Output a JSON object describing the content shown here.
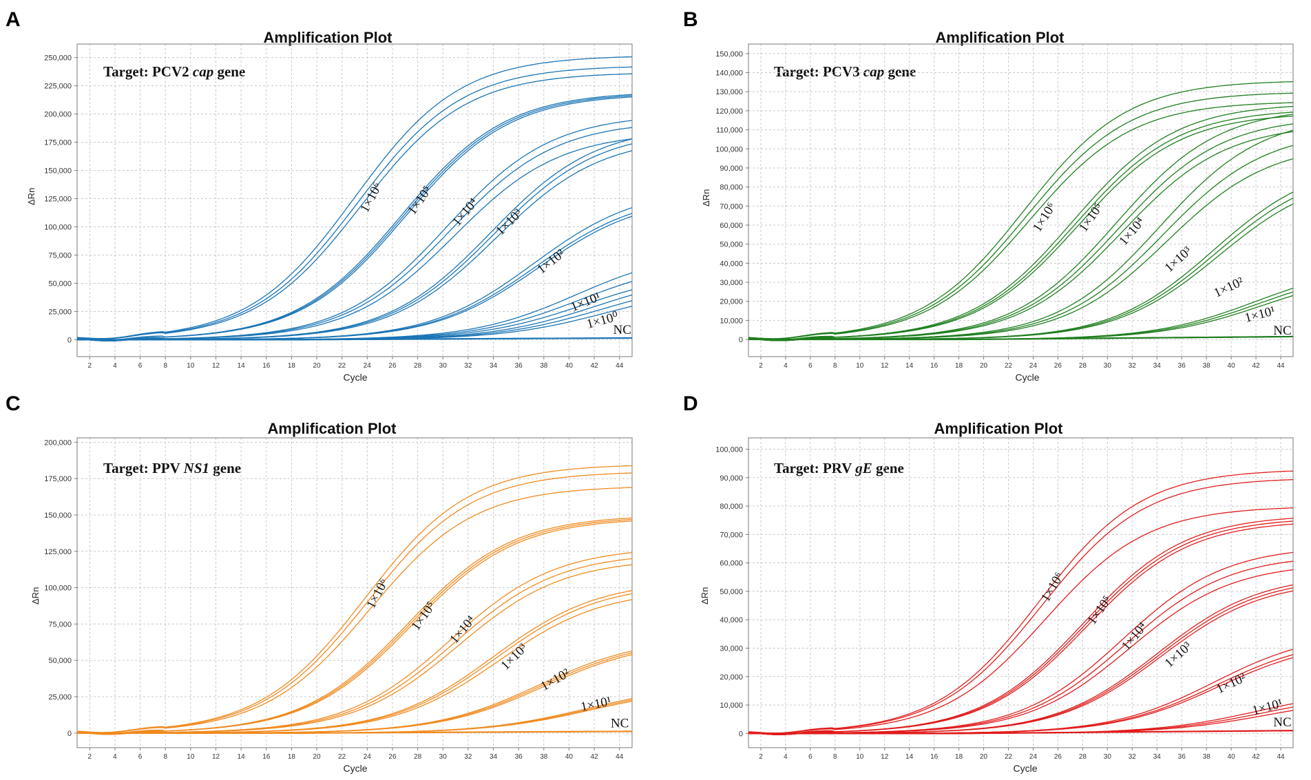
{
  "chart_data": [
    {
      "type": "line",
      "panel_label": "A",
      "title": "Amplification Plot",
      "target": {
        "prefix": "Target: PCV2 ",
        "gene": "cap",
        "suffix": " gene"
      },
      "xlabel": "Cycle",
      "ylabel": "ΔRn",
      "color": "#1a74b5",
      "xlim": [
        1,
        45
      ],
      "ylim": [
        -15000,
        262000
      ],
      "x_ticks": [
        2,
        4,
        6,
        8,
        10,
        12,
        14,
        16,
        18,
        20,
        22,
        24,
        26,
        28,
        30,
        32,
        34,
        36,
        38,
        40,
        42,
        44
      ],
      "y_ticks": [
        0,
        25000,
        50000,
        75000,
        100000,
        125000,
        150000,
        175000,
        200000,
        225000,
        250000
      ],
      "y_tick_labels": [
        "0",
        "25,000",
        "50,000",
        "75,000",
        "100,000",
        "125,000",
        "150,000",
        "175,000",
        "200,000",
        "225,000",
        "250,000"
      ],
      "series": [
        {
          "name": "1×10⁶",
          "ct": 23.0,
          "plateau": [
            252000,
            243000,
            237000
          ],
          "shifts": [
            0,
            0.25,
            0.5
          ],
          "label_pos": [
            24.0,
            112000
          ],
          "label_angle": -62
        },
        {
          "name": "1×10⁵",
          "ct": 26.7,
          "plateau": [
            220000,
            219000,
            218000
          ],
          "shifts": [
            0,
            0.15,
            0.3
          ],
          "label_pos": [
            27.7,
            110000
          ],
          "label_angle": -55
        },
        {
          "name": "1×10⁴",
          "ct": 30.3,
          "plateau": [
            200000,
            194000,
            184000
          ],
          "shifts": [
            0,
            0.3,
            0.6
          ],
          "label_pos": [
            31.2,
            100000
          ],
          "label_angle": -50
        },
        {
          "name": "1×10³",
          "ct": 33.8,
          "plateau": [
            190000,
            186000,
            180000
          ],
          "shifts": [
            0,
            0.2,
            0.4
          ],
          "label_pos": [
            34.6,
            92000
          ],
          "label_angle": -45
        },
        {
          "name": "1×10²",
          "ct": 37.2,
          "plateau": [
            135000,
            130000,
            128000
          ],
          "shifts": [
            0,
            0.2,
            0.4
          ],
          "label_pos": [
            37.8,
            58000
          ],
          "label_angle": -38
        },
        {
          "name": "1×10¹",
          "ct": 40.6,
          "plateau": [
            80000,
            71000,
            62000
          ],
          "shifts": [
            0,
            0.3,
            0.6
          ],
          "label_pos": [
            40.3,
            25000
          ],
          "label_angle": -22
        },
        {
          "name": "1×10⁰",
          "ct": 42.2,
          "plateau": [
            60000,
            54000,
            48000
          ],
          "shifts": [
            0,
            0.4,
            0.8
          ],
          "label_pos": [
            41.5,
            10000
          ],
          "label_angle": -15
        },
        {
          "name": "NC",
          "ct": null,
          "plateau": [
            1500,
            1500,
            1500
          ],
          "shifts": [
            0,
            0,
            0
          ],
          "label_pos": [
            43.5,
            5000
          ],
          "label_angle": 0
        }
      ]
    },
    {
      "type": "line",
      "panel_label": "B",
      "title": "Amplification Plot",
      "target": {
        "prefix": "Target: PCV3 ",
        "gene": "cap",
        "suffix": " gene"
      },
      "xlabel": "Cycle",
      "ylabel": "ΔRn",
      "color": "#1e7e1e",
      "xlim": [
        1,
        45
      ],
      "ylim": [
        -9000,
        155000
      ],
      "x_ticks": [
        2,
        4,
        6,
        8,
        10,
        12,
        14,
        16,
        18,
        20,
        22,
        24,
        26,
        28,
        30,
        32,
        34,
        36,
        38,
        40,
        42,
        44
      ],
      "y_ticks": [
        0,
        10000,
        20000,
        30000,
        40000,
        50000,
        60000,
        70000,
        80000,
        90000,
        100000,
        110000,
        120000,
        130000,
        140000,
        150000
      ],
      "y_tick_labels": [
        "0",
        "10,000",
        "20,000",
        "30,000",
        "40,000",
        "50,000",
        "60,000",
        "70,000",
        "80,000",
        "90,000",
        "100,000",
        "110,000",
        "120,000",
        "130,000",
        "140,000",
        "150,000"
      ],
      "series": [
        {
          "name": "1×10⁶",
          "ct": 23.3,
          "plateau": [
            136000,
            130000,
            125000
          ],
          "shifts": [
            0,
            0.2,
            0.4
          ],
          "label_pos": [
            24.5,
            56000
          ],
          "label_angle": -58
        },
        {
          "name": "1×10⁵",
          "ct": 27.2,
          "plateau": [
            124000,
            121000,
            119000
          ],
          "shifts": [
            0,
            0.2,
            0.4
          ],
          "label_pos": [
            28.2,
            56000
          ],
          "label_angle": -55
        },
        {
          "name": "1×10⁴",
          "ct": 30.7,
          "plateau": [
            122000,
            117000,
            113000
          ],
          "shifts": [
            0,
            0.25,
            0.5
          ],
          "label_pos": [
            31.4,
            49000
          ],
          "label_angle": -50
        },
        {
          "name": "1×10³",
          "ct": 34.2,
          "plateau": [
            118000,
            110000,
            103000
          ],
          "shifts": [
            0,
            0.3,
            0.6
          ],
          "label_pos": [
            35.0,
            35000
          ],
          "label_angle": -42
        },
        {
          "name": "1×10²",
          "ct": 38.6,
          "plateau": [
            94000,
            91000,
            88000
          ],
          "shifts": [
            0,
            0.2,
            0.4
          ],
          "label_pos": [
            38.8,
            22000
          ],
          "label_angle": -25
        },
        {
          "name": "1×10¹",
          "ct": 42.0,
          "plateau": [
            40000,
            38000,
            36000
          ],
          "shifts": [
            0,
            0.3,
            0.6
          ],
          "label_pos": [
            41.2,
            9000
          ],
          "label_angle": -15
        },
        {
          "name": "NC",
          "ct": null,
          "plateau": [
            1500,
            1500,
            1500
          ],
          "shifts": [
            0,
            0,
            0
          ],
          "label_pos": [
            43.4,
            2500
          ],
          "label_angle": 0
        }
      ]
    },
    {
      "type": "line",
      "panel_label": "C",
      "title": "Amplification Plot",
      "target": {
        "prefix": "Target: PPV ",
        "gene": "NS1",
        "suffix": " gene"
      },
      "xlabel": "Cycle",
      "ylabel": "ΔRn",
      "color": "#f08a1e",
      "xlim": [
        1,
        45
      ],
      "ylim": [
        -10000,
        203000
      ],
      "x_ticks": [
        2,
        4,
        6,
        8,
        10,
        12,
        14,
        16,
        18,
        20,
        22,
        24,
        26,
        28,
        30,
        32,
        34,
        36,
        38,
        40,
        42,
        44
      ],
      "y_ticks": [
        0,
        25000,
        50000,
        75000,
        100000,
        125000,
        150000,
        175000,
        200000
      ],
      "y_tick_labels": [
        "0",
        "25,000",
        "50,000",
        "75,000",
        "100,000",
        "125,000",
        "150,000",
        "175,000",
        "200,000"
      ],
      "series": [
        {
          "name": "1×10⁶",
          "ct": 23.8,
          "plateau": [
            185000,
            180000,
            170000
          ],
          "shifts": [
            0,
            0.2,
            0.4
          ],
          "label_pos": [
            24.5,
            85000
          ],
          "label_angle": -62
        },
        {
          "name": "1×10⁵",
          "ct": 27.2,
          "plateau": [
            150000,
            149000,
            148000
          ],
          "shifts": [
            0,
            0.15,
            0.3
          ],
          "label_pos": [
            28.0,
            70000
          ],
          "label_angle": -55
        },
        {
          "name": "1×10⁴",
          "ct": 30.6,
          "plateau": [
            128000,
            124000,
            120000
          ],
          "shifts": [
            0,
            0.3,
            0.6
          ],
          "label_pos": [
            31.0,
            61000
          ],
          "label_angle": -50
        },
        {
          "name": "1×10³",
          "ct": 34.0,
          "plateau": [
            105000,
            103000,
            99000
          ],
          "shifts": [
            0,
            0.2,
            0.4
          ],
          "label_pos": [
            35.0,
            43000
          ],
          "label_angle": -45
        },
        {
          "name": "1×10²",
          "ct": 37.6,
          "plateau": [
            66000,
            65000,
            64000
          ],
          "shifts": [
            0,
            0.2,
            0.4
          ],
          "label_pos": [
            38.0,
            29000
          ],
          "label_angle": -30
        },
        {
          "name": "1×10¹",
          "ct": 41.5,
          "plateau": [
            34000,
            33000,
            32000
          ],
          "shifts": [
            0,
            0.15,
            0.3
          ],
          "label_pos": [
            41.0,
            15000
          ],
          "label_angle": -12
        },
        {
          "name": "NC",
          "ct": null,
          "plateau": [
            1200,
            1200,
            1200
          ],
          "shifts": [
            0,
            0,
            0
          ],
          "label_pos": [
            43.3,
            4000
          ],
          "label_angle": 0
        }
      ]
    },
    {
      "type": "line",
      "panel_label": "D",
      "title": "Amplification Plot",
      "target": {
        "prefix": "Target: PRV ",
        "gene": "gE",
        "suffix": " gene"
      },
      "xlabel": "Cycle",
      "ylabel": "ΔRn",
      "color": "#e11b1b",
      "xlim": [
        1,
        45
      ],
      "ylim": [
        -5000,
        104000
      ],
      "x_ticks": [
        2,
        4,
        6,
        8,
        10,
        12,
        14,
        16,
        18,
        20,
        22,
        24,
        26,
        28,
        30,
        32,
        34,
        36,
        38,
        40,
        42,
        44
      ],
      "y_ticks": [
        0,
        10000,
        20000,
        30000,
        40000,
        50000,
        60000,
        70000,
        80000,
        90000,
        100000
      ],
      "y_tick_labels": [
        "0",
        "10,000",
        "20,000",
        "30,000",
        "40,000",
        "50,000",
        "60,000",
        "70,000",
        "80,000",
        "90,000",
        "100,000"
      ],
      "series": [
        {
          "name": "1×10⁶",
          "ct": 24.5,
          "plateau": [
            93000,
            90000,
            80000
          ],
          "shifts": [
            0,
            0.2,
            0.45
          ],
          "label_pos": [
            25.2,
            46000
          ],
          "label_angle": -60
        },
        {
          "name": "1×10⁵",
          "ct": 28.0,
          "plateau": [
            77000,
            76000,
            75000
          ],
          "shifts": [
            0,
            0.15,
            0.3
          ],
          "label_pos": [
            28.9,
            38000
          ],
          "label_angle": -55
        },
        {
          "name": "1×10⁴",
          "ct": 31.2,
          "plateau": [
            66000,
            63000,
            60000
          ],
          "shifts": [
            0,
            0.3,
            0.6
          ],
          "label_pos": [
            31.6,
            29000
          ],
          "label_angle": -50
        },
        {
          "name": "1×10³",
          "ct": 34.0,
          "plateau": [
            56000,
            55000,
            54000
          ],
          "shifts": [
            0,
            0.15,
            0.3
          ],
          "label_pos": [
            35.0,
            23000
          ],
          "label_angle": -42
        },
        {
          "name": "1×10²",
          "ct": 38.6,
          "plateau": [
            36000,
            34000,
            33000
          ],
          "shifts": [
            0,
            0.2,
            0.4
          ],
          "label_pos": [
            39.0,
            14000
          ],
          "label_angle": -25
        },
        {
          "name": "1×10¹",
          "ct": 42.3,
          "plateau": [
            16000,
            14500,
            13000
          ],
          "shifts": [
            0,
            0.3,
            0.6
          ],
          "label_pos": [
            41.8,
            6500
          ],
          "label_angle": -15
        },
        {
          "name": "NC",
          "ct": null,
          "plateau": [
            1000,
            1000,
            1000
          ],
          "shifts": [
            0,
            0,
            0
          ],
          "label_pos": [
            43.4,
            2500
          ],
          "label_angle": 0
        }
      ]
    }
  ]
}
